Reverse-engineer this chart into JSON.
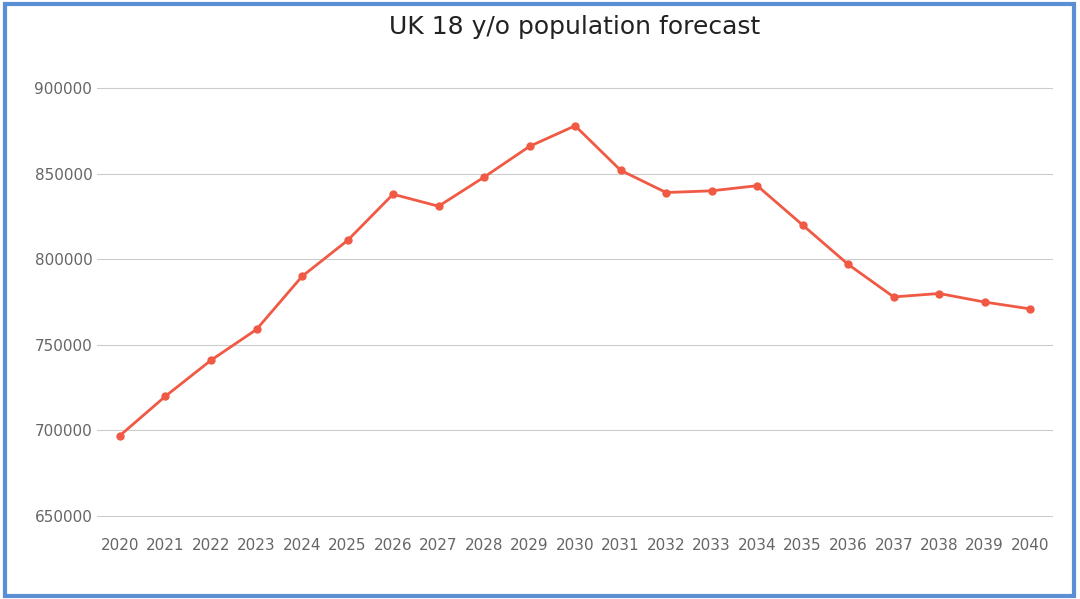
{
  "title": "UK 18 y/o population forecast",
  "years": [
    2020,
    2021,
    2022,
    2023,
    2024,
    2025,
    2026,
    2027,
    2028,
    2029,
    2030,
    2031,
    2032,
    2033,
    2034,
    2035,
    2036,
    2037,
    2038,
    2039,
    2040
  ],
  "values": [
    697000,
    720000,
    741000,
    759000,
    790000,
    811000,
    838000,
    831000,
    848000,
    866000,
    878000,
    852000,
    839000,
    840000,
    843000,
    820000,
    797000,
    778000,
    780000,
    775000,
    771000
  ],
  "line_color": "#f05a44",
  "marker": "o",
  "marker_size": 5,
  "line_width": 2.0,
  "ylim": [
    640000,
    920000
  ],
  "yticks": [
    650000,
    700000,
    750000,
    800000,
    850000,
    900000
  ],
  "background_color": "#ffffff",
  "border_color": "#5b8fd4",
  "grid_color": "#cccccc",
  "title_fontsize": 18,
  "tick_fontsize": 11,
  "tick_color": "#666666"
}
